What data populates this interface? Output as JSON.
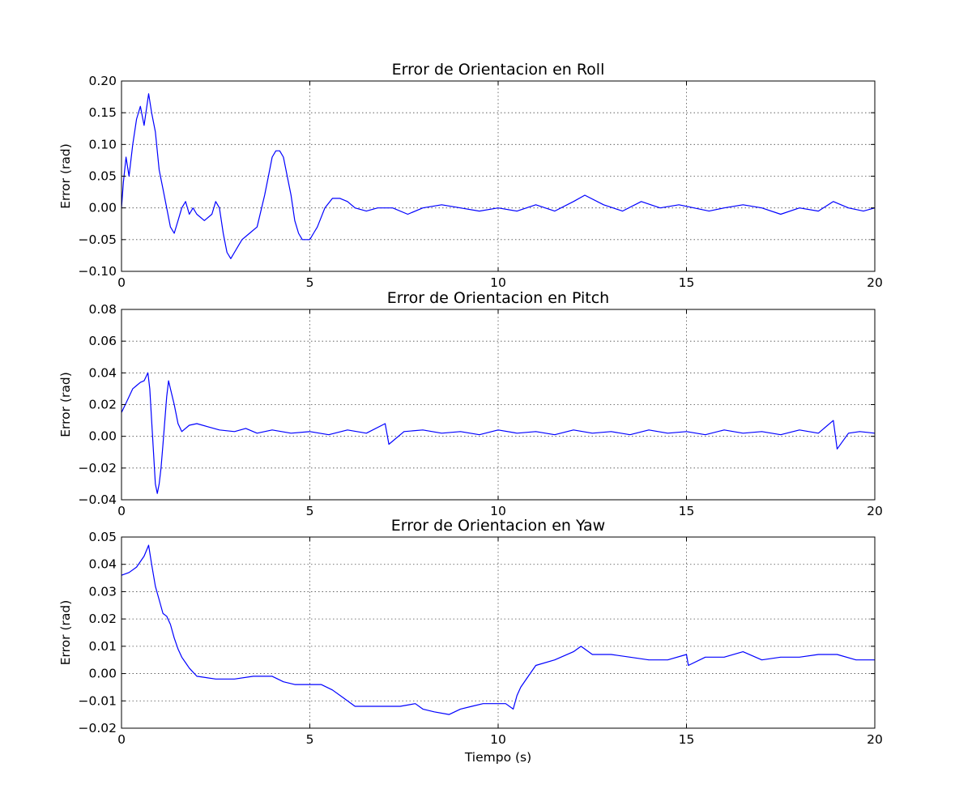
{
  "chart_data": [
    {
      "type": "line",
      "title": "Error de Orientacion en Roll",
      "ylabel": "Error (rad)",
      "xlabel": "",
      "xlim": [
        0,
        20
      ],
      "ylim": [
        -0.1,
        0.2
      ],
      "xticks": [
        "0",
        "5",
        "10",
        "15",
        "20"
      ],
      "yticks": [
        "0.20",
        "0.15",
        "0.10",
        "0.05",
        "0.00",
        "−0.05",
        "−0.10"
      ],
      "grid": true,
      "color": "#0000ff",
      "series": [
        {
          "x": [
            0,
            0.05,
            0.12,
            0.2,
            0.3,
            0.4,
            0.5,
            0.6,
            0.72,
            0.8,
            0.9,
            1.0,
            1.1,
            1.2,
            1.3,
            1.4,
            1.5,
            1.6,
            1.7,
            1.8,
            1.9,
            2.0,
            2.2,
            2.4,
            2.5,
            2.6,
            2.7,
            2.8,
            2.9,
            3.0,
            3.1,
            3.2,
            3.4,
            3.6,
            3.8,
            3.9,
            4.0,
            4.1,
            4.2,
            4.3,
            4.4,
            4.5,
            4.6,
            4.7,
            4.8,
            4.9,
            5.0,
            5.1,
            5.2,
            5.4,
            5.6,
            5.8,
            6.0,
            6.2,
            6.5,
            6.8,
            7.2,
            7.6,
            8.0,
            8.5,
            9.0,
            9.5,
            10.0,
            10.5,
            11.0,
            11.5,
            12.0,
            12.3,
            12.8,
            13.3,
            13.8,
            14.3,
            14.8,
            15.2,
            15.6,
            16.0,
            16.5,
            17.0,
            17.5,
            18.0,
            18.5,
            18.9,
            19.3,
            19.7,
            20.0
          ],
          "y": [
            0.0,
            0.04,
            0.08,
            0.05,
            0.1,
            0.14,
            0.16,
            0.13,
            0.18,
            0.15,
            0.12,
            0.06,
            0.03,
            0.0,
            -0.03,
            -0.04,
            -0.02,
            0.0,
            0.01,
            -0.01,
            0.0,
            -0.01,
            -0.02,
            -0.01,
            0.01,
            0.0,
            -0.04,
            -0.07,
            -0.08,
            -0.07,
            -0.06,
            -0.05,
            -0.04,
            -0.03,
            0.02,
            0.05,
            0.08,
            0.09,
            0.09,
            0.08,
            0.05,
            0.02,
            -0.02,
            -0.04,
            -0.05,
            -0.05,
            -0.05,
            -0.04,
            -0.03,
            0.0,
            0.015,
            0.015,
            0.01,
            0.0,
            -0.005,
            0.0,
            0.0,
            -0.01,
            0.0,
            0.005,
            0.0,
            -0.005,
            0.0,
            -0.005,
            0.005,
            -0.005,
            0.01,
            0.02,
            0.005,
            -0.005,
            0.01,
            0.0,
            0.005,
            0.0,
            -0.005,
            0.0,
            0.005,
            0.0,
            -0.01,
            0.0,
            -0.005,
            0.01,
            0.0,
            -0.005,
            0.0
          ]
        }
      ]
    },
    {
      "type": "line",
      "title": "Error de Orientacion en Pitch",
      "ylabel": "Error (rad)",
      "xlabel": "",
      "xlim": [
        0,
        20
      ],
      "ylim": [
        -0.04,
        0.08
      ],
      "xticks": [
        "0",
        "5",
        "10",
        "15",
        "20"
      ],
      "yticks": [
        "0.08",
        "0.06",
        "0.04",
        "0.02",
        "0.00",
        "−0.02",
        "−0.04"
      ],
      "grid": true,
      "color": "#0000ff",
      "series": [
        {
          "x": [
            0,
            0.1,
            0.2,
            0.3,
            0.4,
            0.5,
            0.6,
            0.7,
            0.75,
            0.8,
            0.85,
            0.9,
            0.95,
            1.0,
            1.05,
            1.1,
            1.15,
            1.2,
            1.25,
            1.3,
            1.4,
            1.5,
            1.6,
            1.8,
            2.0,
            2.3,
            2.6,
            3.0,
            3.3,
            3.6,
            4.0,
            4.5,
            5.0,
            5.5,
            6.0,
            6.5,
            7.0,
            7.1,
            7.5,
            8.0,
            8.5,
            9.0,
            9.5,
            10.0,
            10.5,
            11.0,
            11.5,
            12.0,
            12.5,
            13.0,
            13.5,
            14.0,
            14.5,
            15.0,
            15.5,
            16.0,
            16.5,
            17.0,
            17.5,
            18.0,
            18.5,
            18.9,
            19.0,
            19.3,
            19.6,
            20.0
          ],
          "y": [
            0.015,
            0.02,
            0.025,
            0.03,
            0.032,
            0.034,
            0.035,
            0.04,
            0.03,
            0.01,
            -0.01,
            -0.03,
            -0.036,
            -0.03,
            -0.02,
            -0.005,
            0.01,
            0.025,
            0.035,
            0.03,
            0.02,
            0.008,
            0.003,
            0.007,
            0.008,
            0.006,
            0.004,
            0.003,
            0.005,
            0.002,
            0.004,
            0.002,
            0.003,
            0.001,
            0.004,
            0.002,
            0.008,
            -0.005,
            0.003,
            0.004,
            0.002,
            0.003,
            0.001,
            0.004,
            0.002,
            0.003,
            0.001,
            0.004,
            0.002,
            0.003,
            0.001,
            0.004,
            0.002,
            0.003,
            0.001,
            0.004,
            0.002,
            0.003,
            0.001,
            0.004,
            0.002,
            0.01,
            -0.008,
            0.002,
            0.003,
            0.002
          ]
        }
      ]
    },
    {
      "type": "line",
      "title": "Error de Orientacion en Yaw",
      "ylabel": "Error (rad)",
      "xlabel": "Tiempo (s)",
      "xlim": [
        0,
        20
      ],
      "ylim": [
        -0.02,
        0.05
      ],
      "xticks": [
        "0",
        "5",
        "10",
        "15",
        "20"
      ],
      "yticks": [
        "0.05",
        "0.04",
        "0.03",
        "0.02",
        "0.01",
        "0.00",
        "−0.01",
        "−0.02"
      ],
      "grid": true,
      "color": "#0000ff",
      "series": [
        {
          "x": [
            0,
            0.2,
            0.4,
            0.6,
            0.72,
            0.8,
            0.9,
            1.0,
            1.1,
            1.2,
            1.3,
            1.4,
            1.5,
            1.6,
            1.7,
            1.8,
            2.0,
            2.5,
            3.0,
            3.5,
            4.0,
            4.3,
            4.6,
            5.0,
            5.3,
            5.6,
            5.9,
            6.2,
            6.6,
            7.0,
            7.4,
            7.8,
            8.0,
            8.3,
            8.7,
            9.0,
            9.3,
            9.6,
            10.0,
            10.2,
            10.4,
            10.5,
            10.6,
            10.8,
            11.0,
            11.5,
            12.0,
            12.2,
            12.5,
            13.0,
            13.5,
            14.0,
            14.5,
            15.0,
            15.05,
            15.5,
            16.0,
            16.5,
            17.0,
            17.5,
            18.0,
            18.5,
            19.0,
            19.5,
            20.0
          ],
          "y": [
            0.036,
            0.037,
            0.039,
            0.043,
            0.047,
            0.04,
            0.032,
            0.027,
            0.022,
            0.021,
            0.018,
            0.013,
            0.009,
            0.006,
            0.004,
            0.002,
            -0.001,
            -0.002,
            -0.002,
            -0.001,
            -0.001,
            -0.003,
            -0.004,
            -0.004,
            -0.004,
            -0.006,
            -0.009,
            -0.012,
            -0.012,
            -0.012,
            -0.012,
            -0.011,
            -0.013,
            -0.014,
            -0.015,
            -0.013,
            -0.012,
            -0.011,
            -0.011,
            -0.011,
            -0.013,
            -0.008,
            -0.005,
            -0.001,
            0.003,
            0.005,
            0.008,
            0.01,
            0.007,
            0.007,
            0.006,
            0.005,
            0.005,
            0.007,
            0.003,
            0.006,
            0.006,
            0.008,
            0.005,
            0.006,
            0.006,
            0.007,
            0.007,
            0.005,
            0.005
          ]
        }
      ]
    }
  ]
}
